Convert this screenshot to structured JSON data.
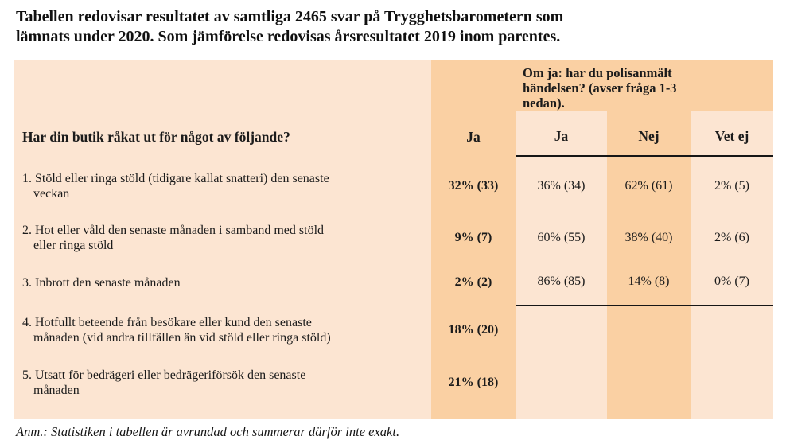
{
  "title": [
    "Tabellen redovisar resultatet av samtliga 2465 svar på Trygghetsbarometern som",
    "lämnats under 2020. Som jämförelse redovisas årsresultatet 2019 inom parentes."
  ],
  "table": {
    "question_header": "Har din butik råkat ut för något av följande?",
    "ja_column_header": "Ja",
    "polis_header": [
      "Om ja: har du polisanmält",
      "händelsen? (avser fråga 1-3",
      "nedan)."
    ],
    "sub_headers": {
      "ja": "Ja",
      "nej": "Nej",
      "vet_ej": "Vet ej"
    },
    "rows": [
      {
        "question": [
          "1. Stöld eller ringa stöld (tidigare kallat snatteri) den senaste",
          "veckan"
        ],
        "ja": "32% (33)",
        "polis_ja": "36% (34)",
        "polis_nej": "62% (61)",
        "polis_vet_ej": "2% (5)"
      },
      {
        "question": [
          "2. Hot eller våld den senaste månaden i samband med stöld",
          "eller ringa stöld"
        ],
        "ja": "9% (7)",
        "polis_ja": "60% (55)",
        "polis_nej": "38% (40)",
        "polis_vet_ej": "2% (6)"
      },
      {
        "question": [
          "3. Inbrott den senaste månaden"
        ],
        "ja": "2% (2)",
        "polis_ja": "86% (85)",
        "polis_nej": "14% (8)",
        "polis_vet_ej": "0% (7)"
      },
      {
        "question": [
          "4. Hotfullt beteende från besökare eller kund den senaste",
          "månaden (vid andra tillfällen än vid stöld eller ringa stöld)"
        ],
        "ja": "18% (20)",
        "polis_ja": "",
        "polis_nej": "",
        "polis_vet_ej": ""
      },
      {
        "question": [
          "5. Utsatt för bedrägeri eller bedrägeriförsök den senaste",
          "månaden"
        ],
        "ja": "21% (18)",
        "polis_ja": "",
        "polis_nej": "",
        "polis_vet_ej": ""
      }
    ]
  },
  "footnote": "Anm.: Statistiken i tabellen är avrundad och summerar därför inte exakt.",
  "colors": {
    "cell_light": "#fce5d2",
    "cell_dark": "#fad0a3",
    "rule": "#161616",
    "text": "#1b1b1b"
  }
}
